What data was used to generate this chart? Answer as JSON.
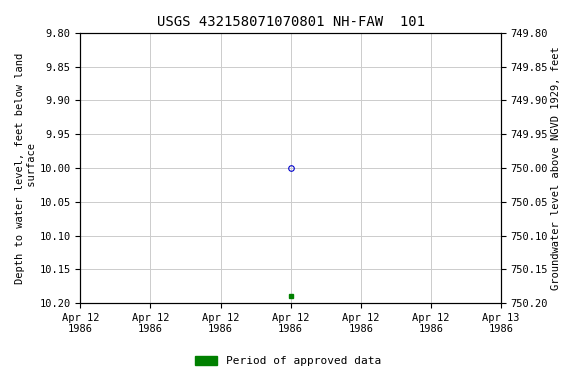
{
  "title": "USGS 432158071070801 NH-FAW  101",
  "ylabel_left": "Depth to water level, feet below land\n surface",
  "ylabel_right": "Groundwater level above NGVD 1929, feet",
  "ylim_left": [
    9.8,
    10.2
  ],
  "ylim_right": [
    750.2,
    749.8
  ],
  "y_ticks_left": [
    9.8,
    9.85,
    9.9,
    9.95,
    10.0,
    10.05,
    10.1,
    10.15,
    10.2
  ],
  "y_ticks_right": [
    750.2,
    750.15,
    750.1,
    750.05,
    750.0,
    749.95,
    749.9,
    749.85,
    749.8
  ],
  "y_tick_labels_right": [
    "750.20",
    "750.15",
    "750.10",
    "750.05",
    "750.00",
    "749.95",
    "749.90",
    "749.85",
    "749.80"
  ],
  "point_open_x": 12.0,
  "point_open_y": 10.0,
  "point_open_color": "#0000cc",
  "point_filled_x": 12.0,
  "point_filled_y": 10.19,
  "point_filled_color": "#008000",
  "legend_label": "Period of approved data",
  "legend_color": "#008000",
  "background_color": "#ffffff",
  "grid_color": "#cccccc",
  "title_fontsize": 10,
  "axis_fontsize": 7.5,
  "tick_fontsize": 7.5,
  "xlim": [
    0,
    24
  ],
  "x_ticks": [
    0,
    4,
    8,
    12,
    16,
    20,
    24
  ],
  "x_tick_labels": [
    "Apr 12\n1986",
    "Apr 12\n1986",
    "Apr 12\n1986",
    "Apr 12\n1986",
    "Apr 12\n1986",
    "Apr 12\n1986",
    "Apr 13\n1986"
  ]
}
